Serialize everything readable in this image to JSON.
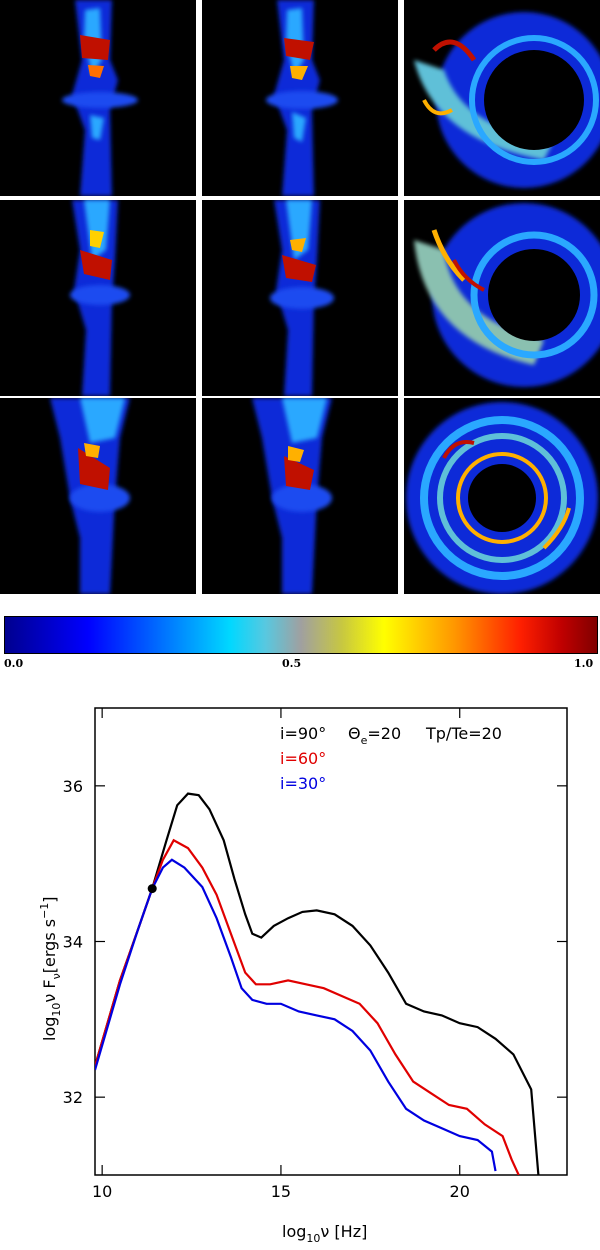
{
  "colorbar": {
    "ticks": [
      "0.0",
      "0.5",
      "1.0"
    ]
  },
  "image_grid": {
    "rows": 3,
    "cols": 3
  },
  "chart_data": {
    "type": "line",
    "xlabel_main": "log",
    "xlabel_sub": "10",
    "xlabel_tail": "ν [Hz]",
    "ylabel_main": "log",
    "ylabel_sub": "10",
    "ylabel_tail": "ν F",
    "ylabel_fsub": "ν",
    "ylabel_units": "[ergs s",
    "ylabel_sup": "−1",
    "ylabel_close": "]",
    "xlim": [
      9.8,
      23.0
    ],
    "ylim": [
      31.0,
      37.0
    ],
    "x_ticks": [
      10,
      15,
      20
    ],
    "y_ticks": [
      32,
      34,
      36
    ],
    "grid": false,
    "legend_position": "top-right",
    "annotation": {
      "params": [
        "Θ",
        "e",
        "=20",
        "Tp/Te=20"
      ]
    },
    "marker_point": {
      "x": 11.4,
      "y": 34.68
    },
    "series": [
      {
        "name": "i=90°",
        "color": "#000000",
        "points": [
          [
            9.8,
            32.4
          ],
          [
            10.5,
            33.5
          ],
          [
            11.0,
            34.15
          ],
          [
            11.4,
            34.68
          ],
          [
            11.8,
            35.3
          ],
          [
            12.1,
            35.75
          ],
          [
            12.4,
            35.9
          ],
          [
            12.7,
            35.88
          ],
          [
            13.0,
            35.7
          ],
          [
            13.4,
            35.3
          ],
          [
            13.7,
            34.8
          ],
          [
            14.0,
            34.35
          ],
          [
            14.2,
            34.1
          ],
          [
            14.45,
            34.05
          ],
          [
            14.8,
            34.2
          ],
          [
            15.2,
            34.3
          ],
          [
            15.6,
            34.38
          ],
          [
            16.0,
            34.4
          ],
          [
            16.5,
            34.35
          ],
          [
            17.0,
            34.2
          ],
          [
            17.5,
            33.95
          ],
          [
            18.0,
            33.6
          ],
          [
            18.5,
            33.2
          ],
          [
            19.0,
            33.1
          ],
          [
            19.5,
            33.05
          ],
          [
            20.0,
            32.95
          ],
          [
            20.5,
            32.9
          ],
          [
            21.0,
            32.75
          ],
          [
            21.5,
            32.55
          ],
          [
            22.0,
            32.1
          ],
          [
            22.2,
            31.0
          ]
        ]
      },
      {
        "name": "i=60°",
        "color": "#e00000",
        "points": [
          [
            9.8,
            32.4
          ],
          [
            10.5,
            33.5
          ],
          [
            11.0,
            34.15
          ],
          [
            11.4,
            34.68
          ],
          [
            11.7,
            35.05
          ],
          [
            12.0,
            35.3
          ],
          [
            12.4,
            35.2
          ],
          [
            12.8,
            34.95
          ],
          [
            13.2,
            34.6
          ],
          [
            13.6,
            34.1
          ],
          [
            14.0,
            33.6
          ],
          [
            14.3,
            33.45
          ],
          [
            14.7,
            33.45
          ],
          [
            15.2,
            33.5
          ],
          [
            15.7,
            33.45
          ],
          [
            16.2,
            33.4
          ],
          [
            16.7,
            33.3
          ],
          [
            17.2,
            33.2
          ],
          [
            17.7,
            32.95
          ],
          [
            18.2,
            32.55
          ],
          [
            18.7,
            32.2
          ],
          [
            19.2,
            32.05
          ],
          [
            19.7,
            31.9
          ],
          [
            20.2,
            31.85
          ],
          [
            20.7,
            31.65
          ],
          [
            21.2,
            31.5
          ],
          [
            21.45,
            31.2
          ],
          [
            21.65,
            31.0
          ]
        ]
      },
      {
        "name": "i=30°",
        "color": "#0000e0",
        "points": [
          [
            9.8,
            32.35
          ],
          [
            10.5,
            33.45
          ],
          [
            11.0,
            34.15
          ],
          [
            11.4,
            34.68
          ],
          [
            11.7,
            34.95
          ],
          [
            11.95,
            35.05
          ],
          [
            12.3,
            34.95
          ],
          [
            12.8,
            34.7
          ],
          [
            13.2,
            34.3
          ],
          [
            13.6,
            33.8
          ],
          [
            13.9,
            33.4
          ],
          [
            14.2,
            33.25
          ],
          [
            14.6,
            33.2
          ],
          [
            15.0,
            33.2
          ],
          [
            15.5,
            33.1
          ],
          [
            16.0,
            33.05
          ],
          [
            16.5,
            33.0
          ],
          [
            17.0,
            32.85
          ],
          [
            17.5,
            32.6
          ],
          [
            18.0,
            32.2
          ],
          [
            18.5,
            31.85
          ],
          [
            19.0,
            31.7
          ],
          [
            19.5,
            31.6
          ],
          [
            20.0,
            31.5
          ],
          [
            20.5,
            31.45
          ],
          [
            20.9,
            31.3
          ],
          [
            21.0,
            31.05
          ]
        ]
      }
    ]
  }
}
